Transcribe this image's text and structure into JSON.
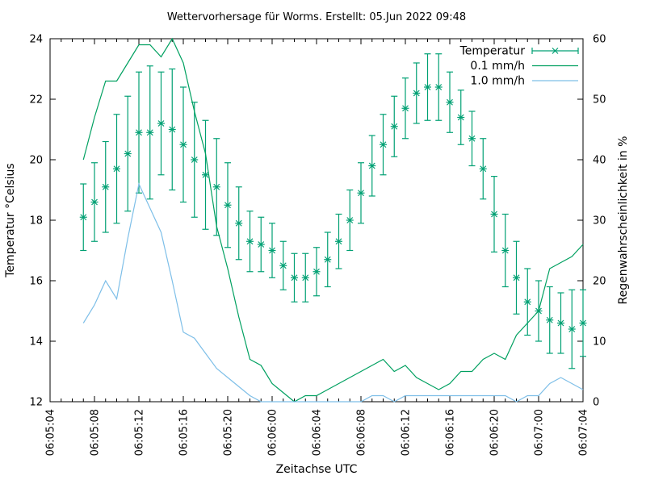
{
  "title": "Wettervorhersage für Worms. Erstellt: 05.Jun 2022 09:48",
  "chart_data": {
    "type": "line",
    "title": "Wettervorhersage für Worms. Erstellt: 05.Jun 2022 09:48",
    "grid": false,
    "legend_position": "top-right-inside",
    "x_axis": {
      "label": "Zeitachse UTC",
      "tick_labels": [
        "06:05:04",
        "06:05:08",
        "06:05:12",
        "06:05:16",
        "06:05:20",
        "06:06:00",
        "06:06:04",
        "06:06:08",
        "06:06:12",
        "06:06:16",
        "06:06:20",
        "06:07:00",
        "06:07:04"
      ],
      "hours_per_major_tick": 4,
      "total_hours": 48,
      "minor_ticks_hourly": true
    },
    "y_left": {
      "label": "Temperatur °Celsius",
      "min": 12,
      "max": 24,
      "tick_step": 2
    },
    "y_right": {
      "label": "Regenwahrscheinlichkeit in %",
      "min": 0,
      "max": 60,
      "tick_step": 10
    },
    "series": [
      {
        "name": "Temperatur",
        "type": "errorbars",
        "axis": "left",
        "color": "#00a073",
        "marker": "star",
        "start_hour_offset": 3,
        "step_hours": 1,
        "values": [
          18.1,
          18.6,
          19.1,
          19.7,
          20.2,
          20.9,
          20.9,
          21.2,
          21.0,
          20.5,
          20.0,
          19.5,
          19.1,
          18.5,
          17.9,
          17.3,
          17.2,
          17.0,
          16.5,
          16.1,
          16.1,
          16.3,
          16.7,
          17.3,
          18.0,
          18.9,
          19.8,
          20.5,
          21.1,
          21.7,
          22.2,
          22.4,
          22.4,
          21.9,
          21.4,
          20.7,
          19.7,
          18.2,
          17.0,
          16.1,
          15.3,
          15.0,
          14.7,
          14.6,
          14.4,
          14.6
        ],
        "errors": [
          1.1,
          1.3,
          1.5,
          1.8,
          1.9,
          2.0,
          2.2,
          1.7,
          2.0,
          1.9,
          1.9,
          1.8,
          1.6,
          1.4,
          1.2,
          1.0,
          0.9,
          0.9,
          0.8,
          0.8,
          0.8,
          0.8,
          0.9,
          0.9,
          1.0,
          1.0,
          1.0,
          1.0,
          1.0,
          1.0,
          1.0,
          1.1,
          1.1,
          1.0,
          0.9,
          0.9,
          1.0,
          1.25,
          1.2,
          1.2,
          1.1,
          1.0,
          1.1,
          1.0,
          1.3,
          1.1
        ]
      },
      {
        "name": "0.1 mm/h",
        "type": "line",
        "axis": "right",
        "color": "#00a060",
        "start_hour_offset": 3,
        "step_hours": 1,
        "values": [
          40,
          47,
          53,
          53,
          56,
          59,
          59,
          57,
          60,
          56,
          48,
          41,
          29,
          22,
          14,
          7,
          6,
          3,
          1.5,
          0,
          1,
          1,
          2,
          3,
          4,
          5,
          6,
          7,
          5,
          6,
          4,
          3,
          2,
          3,
          5,
          5,
          7,
          8,
          7,
          11,
          13,
          15,
          22,
          23,
          24,
          26
        ]
      },
      {
        "name": "1.0 mm/h",
        "type": "line",
        "axis": "right",
        "color": "#7ebfe8",
        "start_hour_offset": 3,
        "step_hours": 1,
        "values": [
          13,
          16,
          20,
          17,
          27,
          36,
          32,
          28,
          20,
          11.5,
          10.5,
          8,
          5.5,
          4,
          2.5,
          1,
          0,
          0,
          0,
          0,
          0,
          0,
          0,
          0,
          0,
          0,
          1,
          1,
          0,
          1,
          1,
          1,
          1,
          1,
          1,
          1,
          1,
          1,
          1,
          0,
          1,
          1,
          3,
          4,
          3,
          2
        ]
      }
    ]
  }
}
